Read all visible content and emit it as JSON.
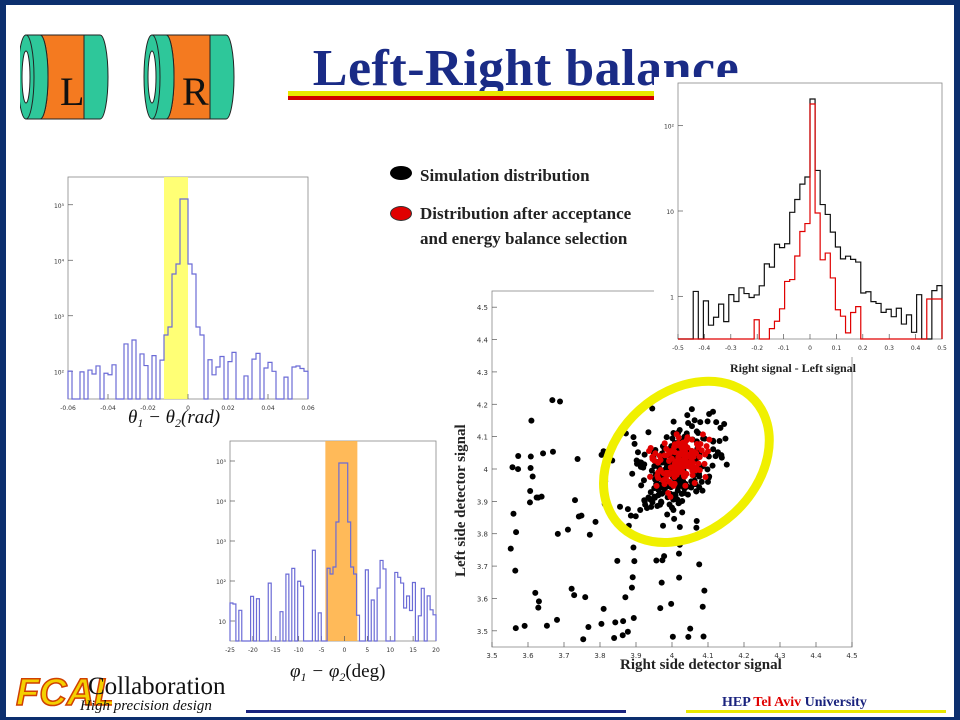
{
  "title": "Left-Right balance",
  "detectors": {
    "left": "L",
    "right": "R"
  },
  "legend": {
    "simulation": "Simulation distribution",
    "after": "Distribution after acceptance and energy balance selection"
  },
  "hist_theta": {
    "xticks": [
      "-0.06",
      "-0.04",
      "-0.02",
      "0",
      "0.02",
      "0.04",
      "0.06"
    ],
    "yticks": [
      "10²",
      "10³",
      "10⁴",
      "10⁵"
    ]
  },
  "hist_phi": {
    "xticks": [
      "-25",
      "-20",
      "-15",
      "-10",
      "-5",
      "0",
      "5",
      "10",
      "15",
      "20"
    ],
    "yticks": [
      "10",
      "10²",
      "10³",
      "10⁴",
      "10⁵"
    ]
  },
  "hist_diff": {
    "caption": "Right signal - Left signal",
    "xticks": [
      "-0.5",
      "-0.4",
      "-0.3",
      "-0.2",
      "-0.1",
      "0",
      "0.1",
      "0.2",
      "0.3",
      "0.4",
      "0.5"
    ],
    "yticks": [
      "1",
      "10",
      "10²"
    ]
  },
  "scatter": {
    "xlabel": "Right side detector signal",
    "ylabel": "Left side detector signal",
    "xticks": [
      "3.5",
      "3.6",
      "3.7",
      "3.8",
      "3.9",
      "4",
      "4.1",
      "4.2",
      "4.3",
      "4.4",
      "4.5"
    ],
    "yticks": [
      "3.5",
      "3.6",
      "3.7",
      "3.8",
      "3.9",
      "4",
      "4.1",
      "4.2",
      "4.3",
      "4.4",
      "4.5"
    ]
  },
  "colors": {
    "title": "#1a2b86",
    "frame": "#0c2f6e",
    "hist_line": "#6b6bd6",
    "yellow_band": "#ffff66",
    "orange_band": "#ffb347",
    "ellipse": "#f0f000",
    "red": "#e00000",
    "teal": "#2ec79a",
    "orange": "#f47a20"
  },
  "footer": {
    "logo": "FCAL",
    "collab": "Collaboration",
    "tagline": "High precision design",
    "hep": "HEP",
    "tel_aviv": "Tel Aviv",
    "university": "University"
  }
}
